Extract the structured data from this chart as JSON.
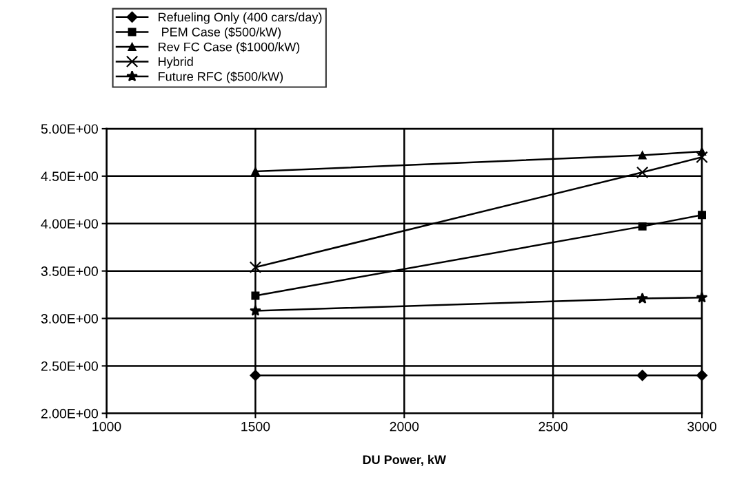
{
  "chart_data": {
    "type": "line",
    "xlabel": "DU Power, kW",
    "x": [
      1500,
      2800,
      3000
    ],
    "series": [
      {
        "name": "Refueling Only (400 cars/day)",
        "color": "#000000",
        "marker": "diamond",
        "values": [
          2.4,
          2.4,
          2.4
        ]
      },
      {
        "name": " PEM Case ($500/kW)",
        "color": "#000000",
        "marker": "square",
        "values": [
          3.24,
          3.97,
          4.09
        ]
      },
      {
        "name": "Rev FC Case ($1000/kW)",
        "color": "#000000",
        "marker": "triangle",
        "values": [
          4.55,
          4.72,
          4.76
        ]
      },
      {
        "name": "Hybrid",
        "color": "#000000",
        "marker": "cross",
        "values": [
          3.54,
          4.54,
          4.7
        ]
      },
      {
        "name": "Future RFC ($500/kW)",
        "color": "#000000",
        "marker": "star",
        "values": [
          3.08,
          3.21,
          3.22
        ]
      }
    ],
    "xlim": [
      1000,
      3000
    ],
    "xticks": [
      1000,
      1500,
      2000,
      2500,
      3000
    ],
    "ylim": [
      2.0,
      5.0
    ],
    "yticks": [
      {
        "value": 2.0,
        "label": "2.00E+00"
      },
      {
        "value": 2.5,
        "label": "2.50E+00"
      },
      {
        "value": 3.0,
        "label": "3.00E+00"
      },
      {
        "value": 3.5,
        "label": "3.50E+00"
      },
      {
        "value": 4.0,
        "label": "4.00E+00"
      },
      {
        "value": 4.5,
        "label": "4.50E+00"
      },
      {
        "value": 5.0,
        "label": "5.00E+00"
      }
    ],
    "grid": true,
    "legend": "top left",
    "line_style": "solid"
  }
}
